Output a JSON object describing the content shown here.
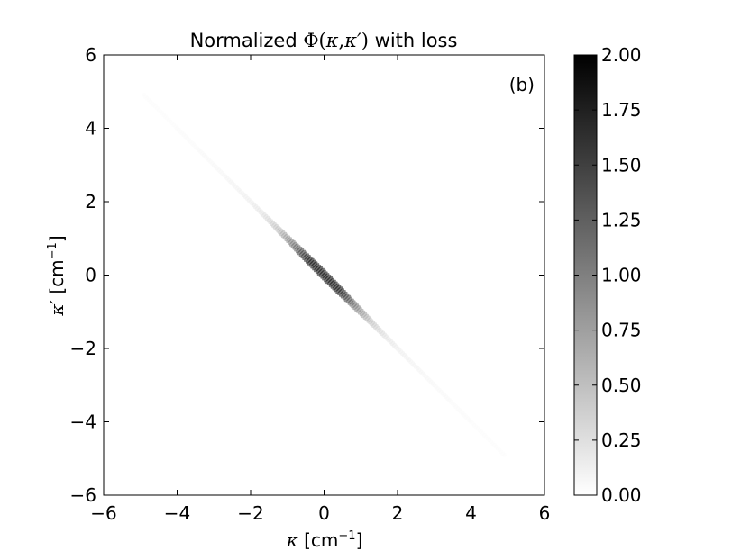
{
  "chart_data": {
    "type": "heatmap",
    "title": {
      "prefix": "Normalized ",
      "math_phi": "Φ",
      "math_open": "(",
      "math_k": "κ",
      "math_comma": ",",
      "math_kp": "κ′",
      "math_close": ")",
      "suffix": " with loss"
    },
    "panel_label": "(b)",
    "xlabel": {
      "symbol": "κ",
      "unit_open": " [cm",
      "unit_exp": "−1",
      "unit_close": "]"
    },
    "ylabel": {
      "symbol": "κ′",
      "unit_open": " [cm",
      "unit_exp": "−1",
      "unit_close": "]"
    },
    "xlim": [
      -6,
      6
    ],
    "ylim": [
      -6,
      6
    ],
    "xticks": [
      -6,
      -4,
      -2,
      0,
      2,
      4,
      6
    ],
    "yticks": [
      -6,
      -4,
      -2,
      0,
      2,
      4,
      6
    ],
    "xtick_labels": [
      "−6",
      "−4",
      "−2",
      "0",
      "2",
      "4",
      "6"
    ],
    "ytick_labels": [
      "−6",
      "−4",
      "−2",
      "0",
      "2",
      "4",
      "6"
    ],
    "colormap": "gray_r",
    "colorbar": {
      "range": [
        0,
        2
      ],
      "ticks": [
        0,
        0.25,
        0.5,
        0.75,
        1.0,
        1.25,
        1.5,
        1.75,
        2.0
      ],
      "tick_labels": [
        "0.00",
        "0.25",
        "0.50",
        "0.75",
        "1.00",
        "1.25",
        "1.50",
        "1.75",
        "2.00"
      ]
    },
    "feature": {
      "description": "narrow band along anti-diagonal κ′ = −κ, peak near origin",
      "peak_value": 2.0,
      "peak_location": [
        0,
        0
      ],
      "extent_along_antidiagonal": [
        -5,
        5
      ]
    },
    "grid": false,
    "background_color": "#ffffff",
    "frame_color": "#000000"
  }
}
